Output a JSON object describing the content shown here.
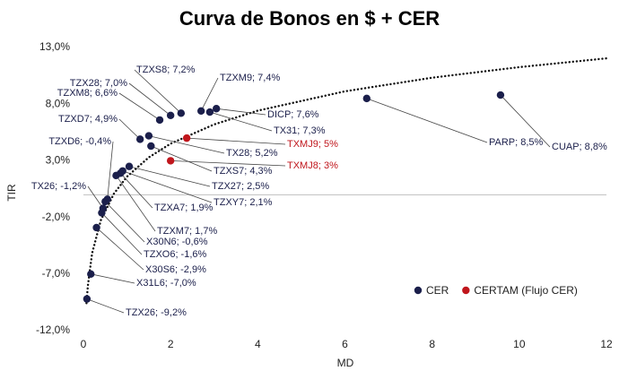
{
  "chart_data": {
    "type": "scatter",
    "title": "Curva de Bonos en $ + CER",
    "x_label": "MD",
    "y_label": "TIR",
    "xlim": [
      0,
      12
    ],
    "xticks": [
      0,
      2,
      4,
      6,
      8,
      10,
      12
    ],
    "ylim": [
      -12,
      13
    ],
    "yticks": [
      {
        "value": -12,
        "label": "-12,0%"
      },
      {
        "value": -7,
        "label": "-7,0%"
      },
      {
        "value": -2,
        "label": "-2,0%"
      },
      {
        "value": 3,
        "label": "3,0%"
      },
      {
        "value": 8,
        "label": "8,0%"
      },
      {
        "value": 13,
        "label": "13,0%"
      }
    ],
    "legend": "lower right",
    "series": [
      {
        "name": "CER",
        "color": "#1b1f4b",
        "x": [
          2.24,
          2.0,
          1.75,
          2.7,
          3.05,
          2.9,
          1.3,
          1.5,
          0.55,
          1.55,
          1.05,
          0.9,
          0.85,
          0.75,
          0.5,
          0.42,
          0.45,
          0.3,
          0.17,
          0.08,
          6.5,
          9.57
        ],
        "values": [
          7.2,
          7.0,
          6.6,
          7.4,
          7.6,
          7.3,
          4.9,
          5.2,
          -0.4,
          4.3,
          2.5,
          2.1,
          1.9,
          1.7,
          -0.6,
          -1.6,
          -1.2,
          -2.9,
          -7.0,
          -9.2,
          8.5,
          8.8
        ],
        "value_labels": [
          "TZXS8; 7,2%",
          "TZX28; 7,0%",
          "TZXM8; 6,6%",
          "TZXM9; 7,4%",
          "DICP; 7,6%",
          "TX31; 7,3%",
          "TZXD7; 4,9%",
          "TX28; 5,2%",
          "TZXD6; -0,4%",
          "TZXS7; 4,3%",
          "TZX27; 2,5%",
          "TZXY7; 2,1%",
          "TZXA7; 1,9%",
          "TZXM7; 1,7%",
          "X30N6; -0,6%",
          "TZXO6; -1,6%",
          "TX26; -1,2%",
          "X30S6; -2,9%",
          "X31L6; -7,0%",
          "TZX26; -9,2%",
          "PARP; 8,5%",
          "CUAP; 8,8%"
        ]
      },
      {
        "name": "CERTAM (Flujo CER)",
        "color": "#c0161c",
        "x": [
          2.37,
          2.0
        ],
        "values": [
          5,
          3
        ],
        "value_labels": [
          "TXMJ9; 5%",
          "TXMJ8; 3%"
        ]
      }
    ],
    "trendline": {
      "x": [
        0.07,
        0.1,
        0.2,
        0.4,
        0.7,
        1,
        1.5,
        2,
        3,
        4,
        6,
        8,
        10,
        12
      ],
      "values": [
        -9.57,
        -8.07,
        -5.16,
        -2.25,
        0.1,
        1.6,
        3.3,
        4.51,
        6.21,
        7.42,
        9.13,
        10.33,
        11.27,
        12.04
      ]
    }
  }
}
